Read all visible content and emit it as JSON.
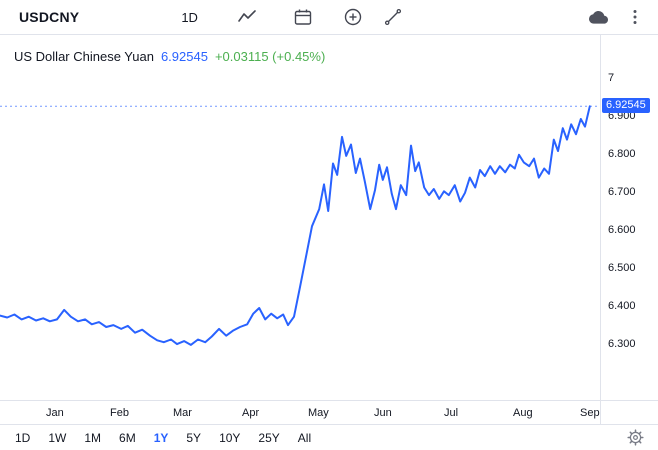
{
  "toolbar": {
    "symbol": "USDCNY",
    "interval": "1D",
    "icons": [
      "chart-style-icon",
      "calendar-icon",
      "compare-add-icon",
      "trend-line-icon",
      "cloud-save-icon",
      "kebab-menu-icon"
    ]
  },
  "legend": {
    "title": "US Dollar Chinese Yuan",
    "price": "6.92545",
    "change": "+0.03115 (+0.45%)"
  },
  "price_axis": {
    "badge": "6.92545"
  },
  "ranges": [
    {
      "label": "1D",
      "active": false
    },
    {
      "label": "1W",
      "active": false
    },
    {
      "label": "1M",
      "active": false
    },
    {
      "label": "6M",
      "active": false
    },
    {
      "label": "1Y",
      "active": true
    },
    {
      "label": "5Y",
      "active": false
    },
    {
      "label": "10Y",
      "active": false
    },
    {
      "label": "25Y",
      "active": false
    },
    {
      "label": "All",
      "active": false
    }
  ],
  "colors": {
    "accent": "#2962FF",
    "up_green": "#4caf50",
    "text": "#131722",
    "muted": "#787b86",
    "border": "#e0e3eb"
  },
  "bottom_icons": [
    "settings-gear-icon"
  ],
  "chart_data": {
    "type": "line",
    "title": "US Dollar Chinese Yuan",
    "symbol": "USDCNY",
    "interval": "1D",
    "range": "1Y",
    "current_price": 6.92545,
    "change_abs": 0.03115,
    "change_pct": 0.45,
    "line_color": "#2962FF",
    "grid": false,
    "ylim": [
      6.153,
      7.113
    ],
    "y_ticks": [
      {
        "label": "7",
        "value": 7.0
      },
      {
        "label": "6.900",
        "value": 6.9
      },
      {
        "label": "6.800",
        "value": 6.8
      },
      {
        "label": "6.700",
        "value": 6.7
      },
      {
        "label": "6.600",
        "value": 6.6
      },
      {
        "label": "6.500",
        "value": 6.5
      },
      {
        "label": "6.400",
        "value": 6.4
      },
      {
        "label": "6.300",
        "value": 6.3
      }
    ],
    "x_ticks": [
      {
        "label": "Jan",
        "f": 0.095
      },
      {
        "label": "Feb",
        "f": 0.202
      },
      {
        "label": "Mar",
        "f": 0.307
      },
      {
        "label": "Apr",
        "f": 0.422
      },
      {
        "label": "May",
        "f": 0.532
      },
      {
        "label": "Jun",
        "f": 0.642
      },
      {
        "label": "Jul",
        "f": 0.758
      },
      {
        "label": "Aug",
        "f": 0.873
      },
      {
        "label": "Sep",
        "f": 0.985
      }
    ],
    "points": [
      [
        0.0,
        6.375
      ],
      [
        0.012,
        6.37
      ],
      [
        0.024,
        6.378
      ],
      [
        0.036,
        6.365
      ],
      [
        0.048,
        6.372
      ],
      [
        0.06,
        6.362
      ],
      [
        0.072,
        6.368
      ],
      [
        0.083,
        6.36
      ],
      [
        0.095,
        6.365
      ],
      [
        0.107,
        6.39
      ],
      [
        0.118,
        6.372
      ],
      [
        0.13,
        6.36
      ],
      [
        0.142,
        6.365
      ],
      [
        0.153,
        6.352
      ],
      [
        0.165,
        6.358
      ],
      [
        0.177,
        6.345
      ],
      [
        0.189,
        6.35
      ],
      [
        0.202,
        6.34
      ],
      [
        0.213,
        6.348
      ],
      [
        0.225,
        6.33
      ],
      [
        0.237,
        6.338
      ],
      [
        0.25,
        6.322
      ],
      [
        0.262,
        6.31
      ],
      [
        0.273,
        6.305
      ],
      [
        0.285,
        6.312
      ],
      [
        0.295,
        6.3
      ],
      [
        0.307,
        6.308
      ],
      [
        0.318,
        6.298
      ],
      [
        0.33,
        6.312
      ],
      [
        0.342,
        6.305
      ],
      [
        0.353,
        6.32
      ],
      [
        0.365,
        6.34
      ],
      [
        0.377,
        6.322
      ],
      [
        0.388,
        6.335
      ],
      [
        0.4,
        6.345
      ],
      [
        0.412,
        6.352
      ],
      [
        0.422,
        6.38
      ],
      [
        0.432,
        6.395
      ],
      [
        0.442,
        6.365
      ],
      [
        0.452,
        6.38
      ],
      [
        0.462,
        6.368
      ],
      [
        0.472,
        6.378
      ],
      [
        0.48,
        6.35
      ],
      [
        0.49,
        6.372
      ],
      [
        0.5,
        6.45
      ],
      [
        0.51,
        6.53
      ],
      [
        0.52,
        6.61
      ],
      [
        0.532,
        6.655
      ],
      [
        0.54,
        6.72
      ],
      [
        0.547,
        6.65
      ],
      [
        0.555,
        6.775
      ],
      [
        0.562,
        6.745
      ],
      [
        0.57,
        6.845
      ],
      [
        0.577,
        6.795
      ],
      [
        0.585,
        6.825
      ],
      [
        0.593,
        6.75
      ],
      [
        0.6,
        6.788
      ],
      [
        0.608,
        6.728
      ],
      [
        0.617,
        6.655
      ],
      [
        0.625,
        6.705
      ],
      [
        0.632,
        6.772
      ],
      [
        0.638,
        6.732
      ],
      [
        0.645,
        6.765
      ],
      [
        0.653,
        6.695
      ],
      [
        0.66,
        6.655
      ],
      [
        0.668,
        6.718
      ],
      [
        0.677,
        6.692
      ],
      [
        0.685,
        6.822
      ],
      [
        0.692,
        6.755
      ],
      [
        0.698,
        6.778
      ],
      [
        0.707,
        6.712
      ],
      [
        0.715,
        6.692
      ],
      [
        0.723,
        6.708
      ],
      [
        0.732,
        6.682
      ],
      [
        0.74,
        6.702
      ],
      [
        0.748,
        6.692
      ],
      [
        0.758,
        6.718
      ],
      [
        0.767,
        6.675
      ],
      [
        0.775,
        6.698
      ],
      [
        0.783,
        6.738
      ],
      [
        0.792,
        6.712
      ],
      [
        0.8,
        6.758
      ],
      [
        0.808,
        6.742
      ],
      [
        0.817,
        6.768
      ],
      [
        0.825,
        6.748
      ],
      [
        0.833,
        6.768
      ],
      [
        0.842,
        6.752
      ],
      [
        0.85,
        6.772
      ],
      [
        0.858,
        6.762
      ],
      [
        0.865,
        6.798
      ],
      [
        0.873,
        6.778
      ],
      [
        0.882,
        6.768
      ],
      [
        0.89,
        6.788
      ],
      [
        0.898,
        6.738
      ],
      [
        0.907,
        6.762
      ],
      [
        0.915,
        6.748
      ],
      [
        0.923,
        6.838
      ],
      [
        0.93,
        6.808
      ],
      [
        0.938,
        6.868
      ],
      [
        0.945,
        6.838
      ],
      [
        0.952,
        6.878
      ],
      [
        0.96,
        6.852
      ],
      [
        0.968,
        6.892
      ],
      [
        0.975,
        6.872
      ],
      [
        0.983,
        6.92545
      ]
    ]
  }
}
